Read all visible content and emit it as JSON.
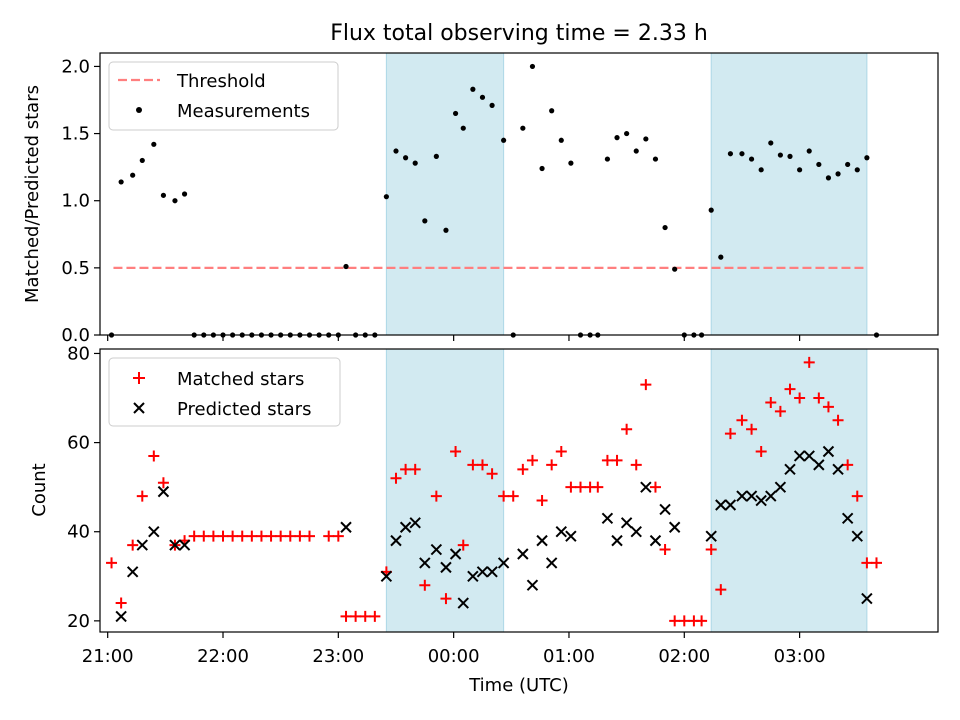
{
  "title": "Flux total observing time = 2.33 h",
  "colors": {
    "threshold": "#ff7f7f",
    "measurement": "#000000",
    "matched": "#ff0000",
    "predicted": "#000000",
    "shade": "#add8e6"
  },
  "chart_data": [
    {
      "type": "scatter",
      "panel": "top",
      "xlabel": "",
      "ylabel": "Matched/Predicted stars",
      "xlim": [
        "20:56",
        "04:12"
      ],
      "ylim": [
        0,
        2.1
      ],
      "yticks": [
        "0.0",
        "0.5",
        "1.0",
        "1.5",
        "2.0"
      ],
      "ytick_values": [
        0,
        0.5,
        1.0,
        1.5,
        2.0
      ],
      "xticks": [],
      "legend": {
        "placement": "upper left",
        "entries": [
          "Threshold",
          "Measurements"
        ]
      },
      "shaded_intervals": [
        [
          "23:25",
          "00:26"
        ],
        [
          "02:14",
          "03:35"
        ]
      ],
      "threshold": {
        "name": "Threshold",
        "value": 0.5,
        "x_range": [
          "21:03",
          "03:35"
        ],
        "style": "dashed"
      },
      "series": [
        {
          "name": "Measurements",
          "marker": "dot",
          "points": [
            [
              "21:02",
              0
            ],
            [
              "21:07",
              1.14
            ],
            [
              "21:13",
              1.19
            ],
            [
              "21:18",
              1.3
            ],
            [
              "21:24",
              1.42
            ],
            [
              "21:29",
              1.04
            ],
            [
              "21:35",
              1.0
            ],
            [
              "21:40",
              1.05
            ],
            [
              "21:45",
              0
            ],
            [
              "21:50",
              0
            ],
            [
              "21:55",
              0
            ],
            [
              "22:00",
              0
            ],
            [
              "22:05",
              0
            ],
            [
              "22:10",
              0
            ],
            [
              "22:15",
              0
            ],
            [
              "22:20",
              0
            ],
            [
              "22:25",
              0
            ],
            [
              "22:30",
              0
            ],
            [
              "22:35",
              0
            ],
            [
              "22:40",
              0
            ],
            [
              "22:45",
              0
            ],
            [
              "22:50",
              0
            ],
            [
              "22:55",
              0
            ],
            [
              "23:00",
              0
            ],
            [
              "23:04",
              0.51
            ],
            [
              "23:09",
              0
            ],
            [
              "23:14",
              0
            ],
            [
              "23:19",
              0
            ],
            [
              "23:25",
              1.03
            ],
            [
              "23:30",
              1.37
            ],
            [
              "23:35",
              1.32
            ],
            [
              "23:40",
              1.28
            ],
            [
              "23:45",
              0.85
            ],
            [
              "23:51",
              1.33
            ],
            [
              "23:56",
              0.78
            ],
            [
              "00:01",
              1.65
            ],
            [
              "00:05",
              1.54
            ],
            [
              "00:10",
              1.83
            ],
            [
              "00:15",
              1.77
            ],
            [
              "00:20",
              1.71
            ],
            [
              "00:26",
              1.45
            ],
            [
              "00:31",
              0
            ],
            [
              "00:36",
              1.54
            ],
            [
              "00:41",
              2.0
            ],
            [
              "00:46",
              1.24
            ],
            [
              "00:51",
              1.67
            ],
            [
              "00:56",
              1.45
            ],
            [
              "01:01",
              1.28
            ],
            [
              "01:06",
              0
            ],
            [
              "01:11",
              0
            ],
            [
              "01:15",
              0
            ],
            [
              "01:20",
              1.31
            ],
            [
              "01:25",
              1.47
            ],
            [
              "01:30",
              1.5
            ],
            [
              "01:35",
              1.37
            ],
            [
              "01:40",
              1.46
            ],
            [
              "01:45",
              1.31
            ],
            [
              "01:50",
              0.8
            ],
            [
              "01:55",
              0.49
            ],
            [
              "02:00",
              0
            ],
            [
              "02:05",
              0
            ],
            [
              "02:09",
              0
            ],
            [
              "02:14",
              0.93
            ],
            [
              "02:19",
              0.58
            ],
            [
              "02:24",
              1.35
            ],
            [
              "02:30",
              1.35
            ],
            [
              "02:35",
              1.31
            ],
            [
              "02:40",
              1.23
            ],
            [
              "02:45",
              1.43
            ],
            [
              "02:50",
              1.34
            ],
            [
              "02:55",
              1.33
            ],
            [
              "03:00",
              1.23
            ],
            [
              "03:05",
              1.37
            ],
            [
              "03:10",
              1.27
            ],
            [
              "03:15",
              1.17
            ],
            [
              "03:20",
              1.2
            ],
            [
              "03:25",
              1.27
            ],
            [
              "03:30",
              1.23
            ],
            [
              "03:35",
              1.32
            ],
            [
              "03:40",
              0
            ]
          ]
        }
      ]
    },
    {
      "type": "scatter",
      "panel": "bottom",
      "xlabel": "Time (UTC)",
      "ylabel": "Count",
      "xlim": [
        "20:56",
        "04:12"
      ],
      "ylim": [
        17.5,
        81
      ],
      "yticks": [
        "20",
        "40",
        "60",
        "80"
      ],
      "ytick_values": [
        20,
        40,
        60,
        80
      ],
      "xticks": [
        "21:00",
        "22:00",
        "23:00",
        "00:00",
        "01:00",
        "02:00",
        "03:00"
      ],
      "xtick_positions": [
        "21:00",
        "22:00",
        "23:00",
        "00:00",
        "01:00",
        "02:00",
        "03:00"
      ],
      "legend": {
        "placement": "upper left",
        "entries": [
          "Matched stars",
          "Predicted stars"
        ]
      },
      "shaded_intervals": [
        [
          "23:25",
          "00:26"
        ],
        [
          "02:14",
          "03:35"
        ]
      ],
      "series": [
        {
          "name": "Matched stars",
          "marker": "plus",
          "points": [
            [
              "21:02",
              33
            ],
            [
              "21:07",
              24
            ],
            [
              "21:13",
              37
            ],
            [
              "21:18",
              48
            ],
            [
              "21:24",
              57
            ],
            [
              "21:29",
              51
            ],
            [
              "21:35",
              37
            ],
            [
              "21:40",
              38
            ],
            [
              "21:45",
              39
            ],
            [
              "21:50",
              39
            ],
            [
              "21:55",
              39
            ],
            [
              "22:00",
              39
            ],
            [
              "22:05",
              39
            ],
            [
              "22:10",
              39
            ],
            [
              "22:15",
              39
            ],
            [
              "22:20",
              39
            ],
            [
              "22:25",
              39
            ],
            [
              "22:30",
              39
            ],
            [
              "22:35",
              39
            ],
            [
              "22:40",
              39
            ],
            [
              "22:45",
              39
            ],
            [
              "22:55",
              39
            ],
            [
              "23:00",
              39
            ],
            [
              "23:04",
              21
            ],
            [
              "23:09",
              21
            ],
            [
              "23:14",
              21
            ],
            [
              "23:19",
              21
            ],
            [
              "23:25",
              31
            ],
            [
              "23:30",
              52
            ],
            [
              "23:35",
              54
            ],
            [
              "23:40",
              54
            ],
            [
              "23:45",
              28
            ],
            [
              "23:51",
              48
            ],
            [
              "23:56",
              25
            ],
            [
              "00:01",
              58
            ],
            [
              "00:05",
              37
            ],
            [
              "00:10",
              55
            ],
            [
              "00:15",
              55
            ],
            [
              "00:20",
              53
            ],
            [
              "00:26",
              48
            ],
            [
              "00:31",
              48
            ],
            [
              "00:36",
              54
            ],
            [
              "00:41",
              56
            ],
            [
              "00:46",
              47
            ],
            [
              "00:51",
              55
            ],
            [
              "00:56",
              58
            ],
            [
              "01:01",
              50
            ],
            [
              "01:06",
              50
            ],
            [
              "01:11",
              50
            ],
            [
              "01:15",
              50
            ],
            [
              "01:20",
              56
            ],
            [
              "01:25",
              56
            ],
            [
              "01:30",
              63
            ],
            [
              "01:35",
              55
            ],
            [
              "01:40",
              73
            ],
            [
              "01:45",
              50
            ],
            [
              "01:50",
              36
            ],
            [
              "01:55",
              20
            ],
            [
              "02:00",
              20
            ],
            [
              "02:05",
              20
            ],
            [
              "02:09",
              20
            ],
            [
              "02:14",
              36
            ],
            [
              "02:19",
              27
            ],
            [
              "02:24",
              62
            ],
            [
              "02:30",
              65
            ],
            [
              "02:35",
              63
            ],
            [
              "02:40",
              58
            ],
            [
              "02:45",
              69
            ],
            [
              "02:50",
              67
            ],
            [
              "02:55",
              72
            ],
            [
              "03:00",
              70
            ],
            [
              "03:05",
              78
            ],
            [
              "03:10",
              70
            ],
            [
              "03:15",
              68
            ],
            [
              "03:20",
              65
            ],
            [
              "03:25",
              55
            ],
            [
              "03:30",
              48
            ],
            [
              "03:35",
              33
            ],
            [
              "03:40",
              33
            ]
          ]
        },
        {
          "name": "Predicted stars",
          "marker": "x",
          "points": [
            [
              "21:07",
              21
            ],
            [
              "21:13",
              31
            ],
            [
              "21:18",
              37
            ],
            [
              "21:24",
              40
            ],
            [
              "21:29",
              49
            ],
            [
              "21:35",
              37
            ],
            [
              "21:40",
              37
            ],
            [
              "23:04",
              41
            ],
            [
              "23:25",
              30
            ],
            [
              "23:30",
              38
            ],
            [
              "23:35",
              41
            ],
            [
              "23:40",
              42
            ],
            [
              "23:45",
              33
            ],
            [
              "23:51",
              36
            ],
            [
              "23:56",
              32
            ],
            [
              "00:01",
              35
            ],
            [
              "00:05",
              24
            ],
            [
              "00:10",
              30
            ],
            [
              "00:15",
              31
            ],
            [
              "00:20",
              31
            ],
            [
              "00:26",
              33
            ],
            [
              "00:36",
              35
            ],
            [
              "00:41",
              28
            ],
            [
              "00:46",
              38
            ],
            [
              "00:51",
              33
            ],
            [
              "00:56",
              40
            ],
            [
              "01:01",
              39
            ],
            [
              "01:20",
              43
            ],
            [
              "01:25",
              38
            ],
            [
              "01:30",
              42
            ],
            [
              "01:35",
              40
            ],
            [
              "01:40",
              50
            ],
            [
              "01:45",
              38
            ],
            [
              "01:50",
              45
            ],
            [
              "01:55",
              41
            ],
            [
              "02:14",
              39
            ],
            [
              "02:19",
              46
            ],
            [
              "02:24",
              46
            ],
            [
              "02:30",
              48
            ],
            [
              "02:35",
              48
            ],
            [
              "02:40",
              47
            ],
            [
              "02:45",
              48
            ],
            [
              "02:50",
              50
            ],
            [
              "02:55",
              54
            ],
            [
              "03:00",
              57
            ],
            [
              "03:05",
              57
            ],
            [
              "03:10",
              55
            ],
            [
              "03:15",
              58
            ],
            [
              "03:20",
              54
            ],
            [
              "03:25",
              43
            ],
            [
              "03:30",
              39
            ],
            [
              "03:35",
              25
            ]
          ]
        }
      ]
    }
  ]
}
